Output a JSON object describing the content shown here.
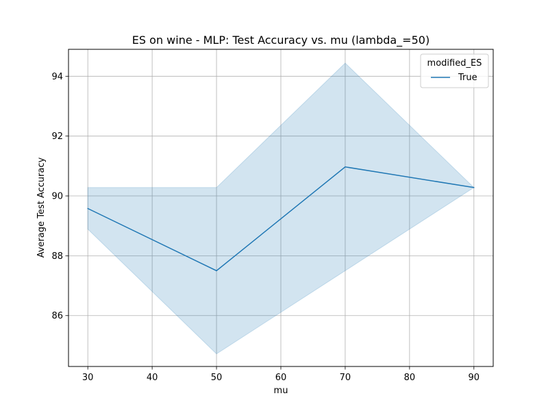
{
  "chart_data": {
    "type": "line",
    "title": "ES on wine - MLP: Test Accuracy vs. mu (lambda_=50)",
    "xlabel": "mu",
    "ylabel": "Average Test Accuracy",
    "x": [
      30,
      50,
      70,
      90
    ],
    "series": [
      {
        "name": "True",
        "values": [
          89.58,
          87.5,
          90.97,
          90.28
        ],
        "ci_lower": [
          88.89,
          84.72,
          87.5,
          90.28
        ],
        "ci_upper": [
          90.28,
          90.28,
          94.44,
          90.28
        ],
        "color": "#1f77b4"
      }
    ],
    "xlim": [
      27,
      93
    ],
    "ylim": [
      84.3,
      94.9
    ],
    "xticks": [
      30,
      40,
      50,
      60,
      70,
      80,
      90
    ],
    "yticks": [
      86,
      88,
      90,
      92,
      94
    ],
    "grid": true,
    "legend": {
      "title": "modified_ES",
      "placement": "top-right"
    }
  }
}
